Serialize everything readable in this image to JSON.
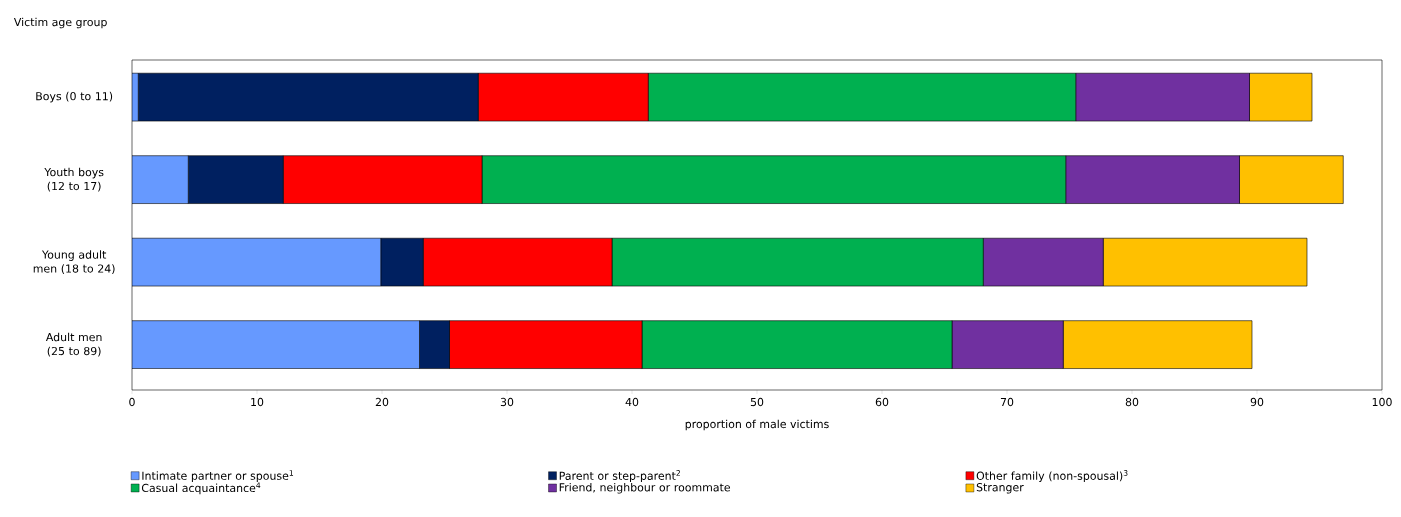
{
  "chart_data": {
    "type": "bar",
    "orientation": "horizontal",
    "stacked": true,
    "ylabel": "Victim age group",
    "xlabel": "proportion of male victims",
    "categories": [
      "Boys (0 to 11)",
      "Youth boys (12 to 17)",
      "Young adult men (18 to 24)",
      "Adult men (25 to 89)"
    ],
    "series": [
      {
        "name": "Intimate partner or spouse$^{1}$",
        "color": "#6699ff",
        "values": [
          0.5,
          4.5,
          19.9,
          23.0
        ]
      },
      {
        "name": "Parent or step-parent$^{2}$",
        "color": "#002060",
        "values": [
          27.2,
          7.6,
          3.4,
          2.4
        ]
      },
      {
        "name": "Other family (non-spousal)$^{3}$",
        "color": "#ff0000",
        "values": [
          13.6,
          15.9,
          15.1,
          15.4
        ]
      },
      {
        "name": "Casual acquaintance$^{4}$",
        "color": "#00b050",
        "values": [
          34.2,
          46.7,
          29.7,
          24.8
        ]
      },
      {
        "name": "Friend, neighbour or roommate",
        "color": "#7030a0",
        "values": [
          13.9,
          13.9,
          9.6,
          8.9
        ]
      },
      {
        "name": "Stranger",
        "color": "#ffc000",
        "values": [
          5.0,
          8.3,
          16.3,
          15.1
        ]
      }
    ],
    "xlim": [
      0,
      100
    ],
    "xticks": [
      0,
      10,
      20,
      30,
      40,
      50,
      60,
      70,
      80,
      90,
      100
    ],
    "grid": false,
    "legend": "bottom"
  }
}
